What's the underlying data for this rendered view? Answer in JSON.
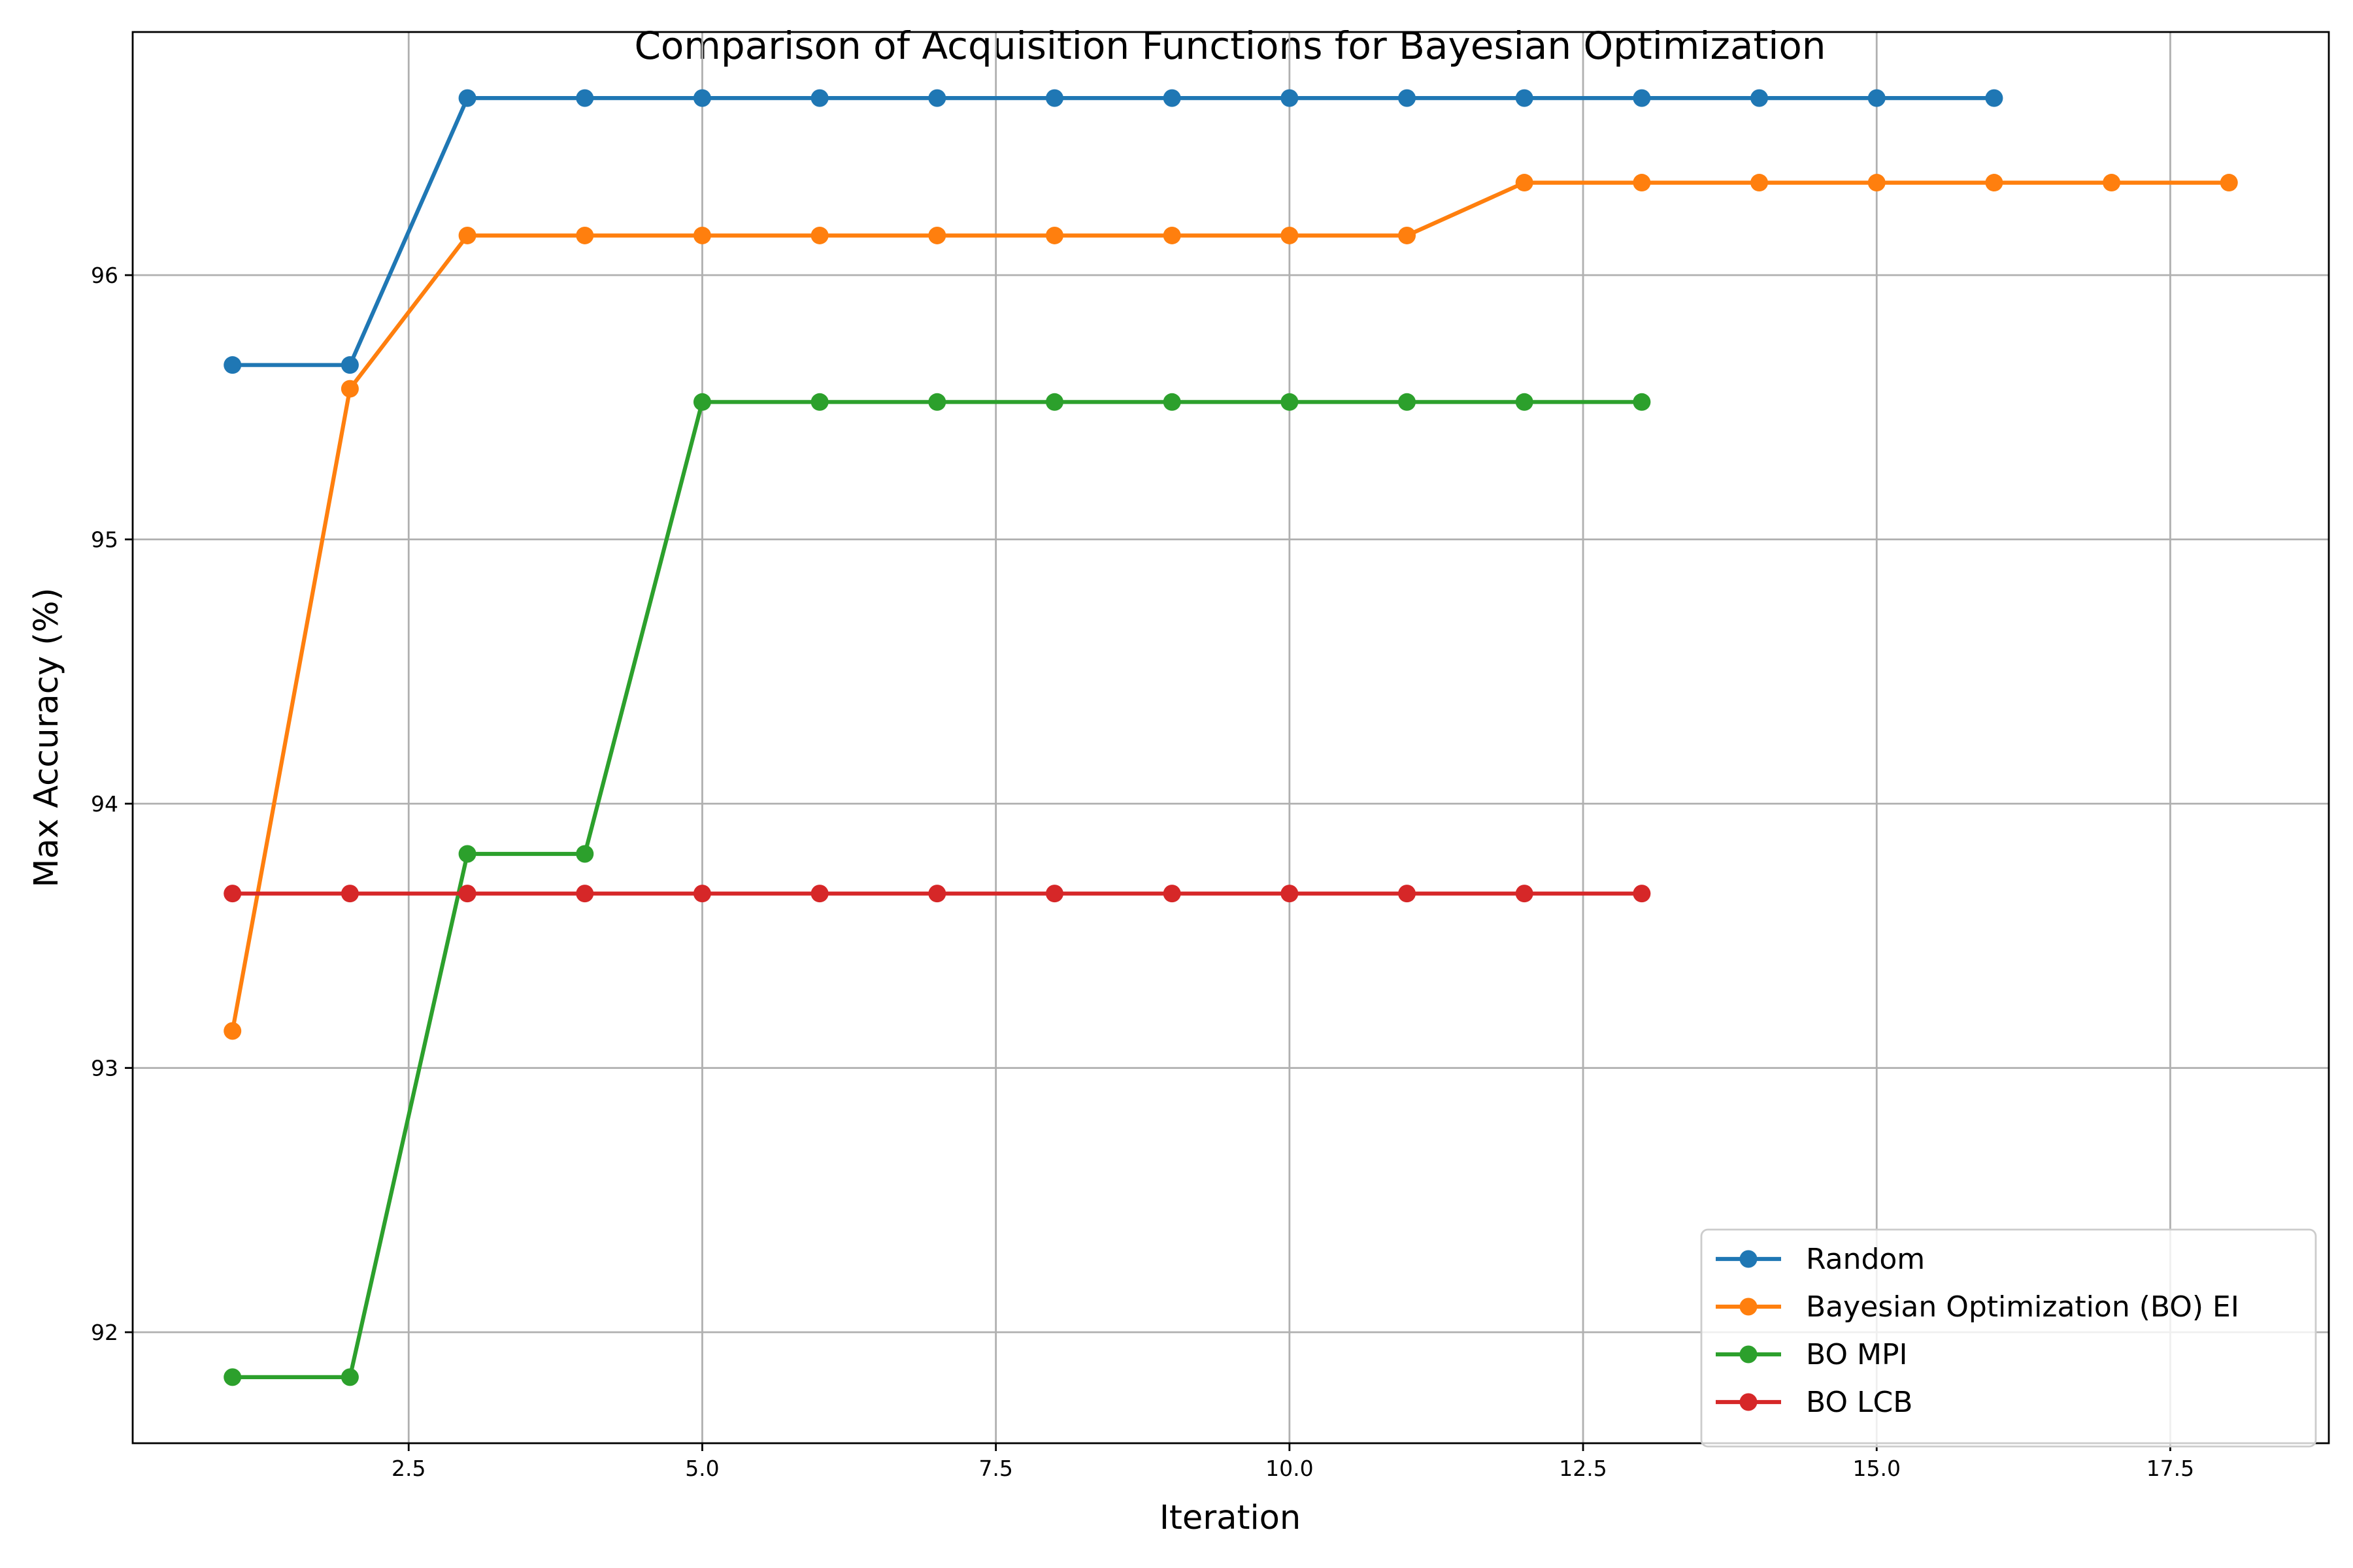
{
  "chart_data": {
    "type": "line",
    "title": "Comparison of Acquisition Functions for Bayesian Optimization",
    "xlabel": "Iteration",
    "ylabel": "Max Accuracy (%)",
    "xlim": [
      0.15,
      18.85
    ],
    "ylim": [
      91.58,
      96.92
    ],
    "xticks": [
      2.5,
      5.0,
      7.5,
      10.0,
      12.5,
      15.0,
      17.5
    ],
    "xtick_labels": [
      "2.5",
      "5.0",
      "7.5",
      "10.0",
      "12.5",
      "15.0",
      "17.5"
    ],
    "yticks": [
      92,
      93,
      94,
      95,
      96
    ],
    "ytick_labels": [
      "92",
      "93",
      "94",
      "95",
      "96"
    ],
    "grid": true,
    "legend_position": "lower-right",
    "series": [
      {
        "name": "Random",
        "color": "#1f77b4",
        "x": [
          1,
          2,
          3,
          4,
          5,
          6,
          7,
          8,
          9,
          10,
          11,
          12,
          13,
          14,
          15,
          16
        ],
        "y": [
          95.66,
          95.66,
          96.67,
          96.67,
          96.67,
          96.67,
          96.67,
          96.67,
          96.67,
          96.67,
          96.67,
          96.67,
          96.67,
          96.67,
          96.67,
          96.67
        ]
      },
      {
        "name": "Bayesian Optimization (BO) EI",
        "color": "#ff7f0e",
        "x": [
          1,
          2,
          3,
          4,
          5,
          6,
          7,
          8,
          9,
          10,
          11,
          12,
          13,
          14,
          15,
          16,
          17,
          18
        ],
        "y": [
          93.14,
          95.57,
          96.15,
          96.15,
          96.15,
          96.15,
          96.15,
          96.15,
          96.15,
          96.15,
          96.15,
          96.35,
          96.35,
          96.35,
          96.35,
          96.35,
          96.35,
          96.35
        ]
      },
      {
        "name": "BO MPI",
        "color": "#2ca02c",
        "x": [
          1,
          2,
          3,
          4,
          5,
          6,
          7,
          8,
          9,
          10,
          11,
          12,
          13
        ],
        "y": [
          91.83,
          91.83,
          93.81,
          93.81,
          95.52,
          95.52,
          95.52,
          95.52,
          95.52,
          95.52,
          95.52,
          95.52,
          95.52
        ]
      },
      {
        "name": "BO LCB",
        "color": "#d62728",
        "x": [
          1,
          2,
          3,
          4,
          5,
          6,
          7,
          8,
          9,
          10,
          11,
          12,
          13
        ],
        "y": [
          93.66,
          93.66,
          93.66,
          93.66,
          93.66,
          93.66,
          93.66,
          93.66,
          93.66,
          93.66,
          93.66,
          93.66,
          93.66
        ]
      }
    ]
  }
}
